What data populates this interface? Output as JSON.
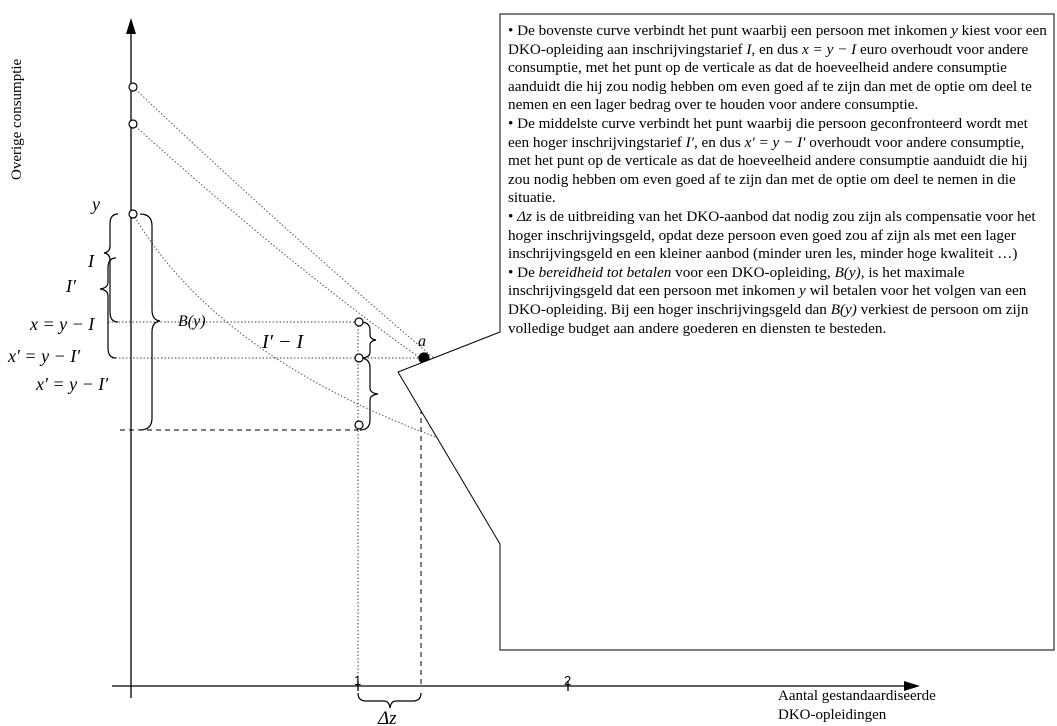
{
  "axes": {
    "y_label": "Overige consumptie",
    "x_label_line1": "Aantal gestandaardiseerde",
    "x_label_line2": "DKO-opleidingen",
    "x_ticks": [
      "1",
      "2"
    ]
  },
  "labels": {
    "y": "y",
    "I": "I",
    "I_prime": "I′",
    "x_eq": "x = y − I",
    "xprime_eq_1": "x′ = y − I′",
    "xprime_eq_2": "x′ = y − I′",
    "B_y": "B(y)",
    "Iprime_minus_I": "I′ − I",
    "a": "a",
    "delta_z": "Δz"
  },
  "callout": {
    "p1_a": "• De bovenste curve verbindt het punt waarbij een persoon met inkomen ",
    "p1_y": "y",
    "p1_b": " kiest voor een DKO-opleiding aan inschrijvingstarief ",
    "p1_I": "I",
    "p1_c": ", en dus ",
    "p1_eq": "x = y − I",
    "p1_d": " euro overhoudt voor andere consumptie, met het punt op de verticale as dat de hoeveelheid andere consumptie aanduidt die hij zou nodig hebben om even goed af te zijn dan met de optie om deel te nemen en een lager bedrag over te houden voor andere consumptie.",
    "p2_a": "• De middelste curve verbindt het punt waarbij die persoon geconfronteerd wordt met een hoger inschrijvingstarief ",
    "p2_Ip": "I′",
    "p2_b": ", en dus ",
    "p2_eq": "x′ = y − I′",
    "p2_c": " overhoudt voor andere consumptie, met het punt op de verticale as dat de hoeveelheid andere consumptie aanduidt die hij zou nodig hebben om even goed af te zijn dan met de optie om deel te nemen in die situatie.",
    "p3_a": "• ",
    "p3_dz": "Δz",
    "p3_b": " is de uitbreiding van het DKO-aanbod dat nodig zou zijn als compensatie voor het hoger inschrijvingsgeld, opdat deze persoon even goed zou af zijn als met een lager inschrijvingsgeld en een kleiner aanbod (minder uren les, minder hoge kwaliteit …)",
    "p4_a": "• De ",
    "p4_em": "bereidheid tot betalen",
    "p4_b": " voor een DKO-opleiding, ",
    "p4_By": "B(y)",
    "p4_c": ", is het maximale inschrijvingsgeld dat een persoon met inkomen ",
    "p4_y": "y",
    "p4_d": " wil betalen voor het volgen van een DKO-opleiding. Bij een hoger inschrijvingsgeld dan ",
    "p4_By2": "B(y)",
    "p4_e": " verkiest de persoon om zijn volledige budget aan andere goederen en diensten te besteden."
  }
}
